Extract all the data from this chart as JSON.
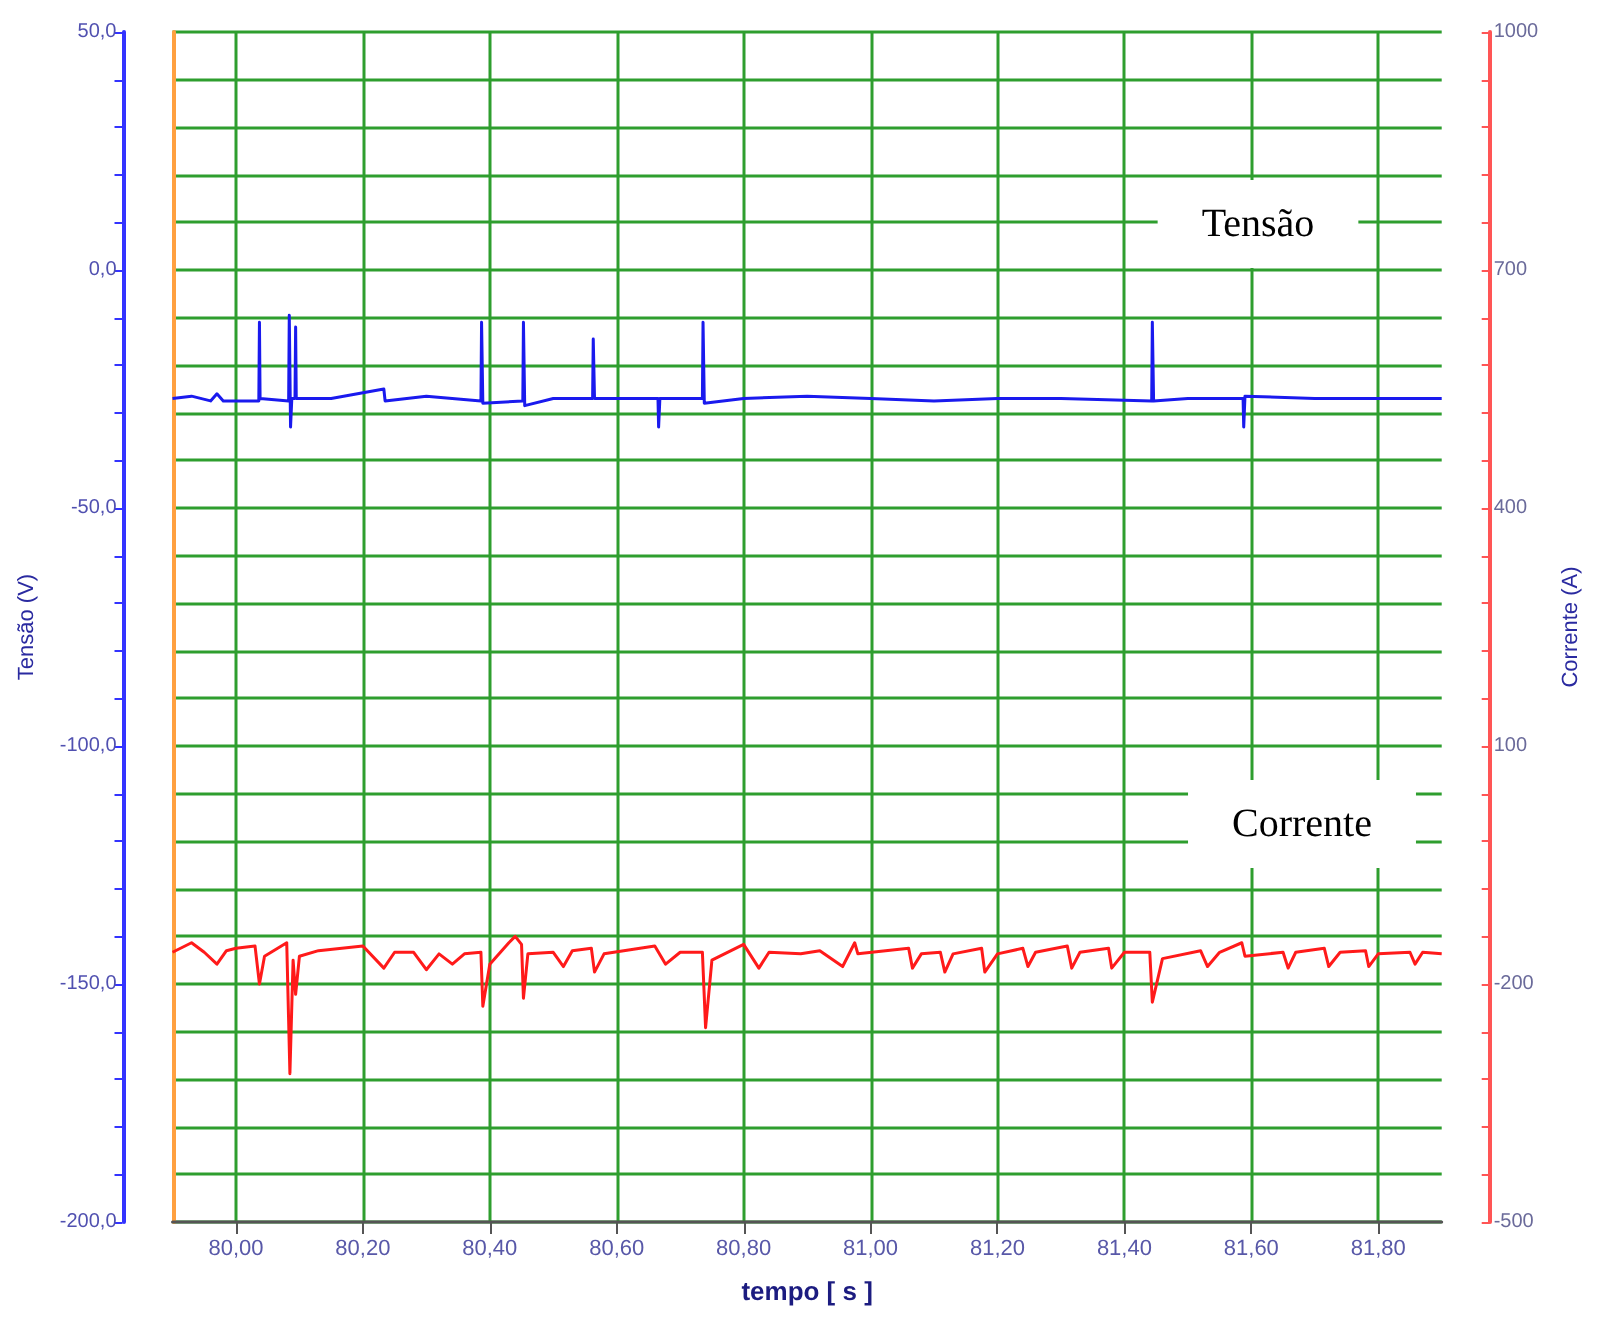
{
  "chart_data": {
    "type": "line",
    "xlabel": "tempo [ s ]",
    "ylabel": "Tensão (V)",
    "y2label": "Corrente (A)",
    "annotations": [
      "Tensão",
      "Corrente"
    ],
    "xlim": [
      79.9,
      81.9
    ],
    "xticks": [
      {
        "value": 80.0,
        "label": "80,00"
      },
      {
        "value": 80.2,
        "label": "80,20"
      },
      {
        "value": 80.4,
        "label": "80,40"
      },
      {
        "value": 80.6,
        "label": "80,60"
      },
      {
        "value": 80.8,
        "label": "80,80"
      },
      {
        "value": 81.0,
        "label": "81,00"
      },
      {
        "value": 81.2,
        "label": "81,20"
      },
      {
        "value": 81.4,
        "label": "81,40"
      },
      {
        "value": 81.6,
        "label": "81,60"
      },
      {
        "value": 81.8,
        "label": "81,80"
      }
    ],
    "ylim": [
      -200,
      50
    ],
    "yticks": [
      {
        "value": -200,
        "label": "-200,0"
      },
      {
        "value": -190,
        "label": null
      },
      {
        "value": -180,
        "label": null
      },
      {
        "value": -170,
        "label": null
      },
      {
        "value": -160,
        "label": null
      },
      {
        "value": -150,
        "label": "-150,0"
      },
      {
        "value": -140,
        "label": null
      },
      {
        "value": -130,
        "label": null
      },
      {
        "value": -120,
        "label": null
      },
      {
        "value": -110,
        "label": null
      },
      {
        "value": -100,
        "label": "-100,0"
      },
      {
        "value": -90,
        "label": null
      },
      {
        "value": -80,
        "label": null
      },
      {
        "value": -70,
        "label": null
      },
      {
        "value": -60,
        "label": null
      },
      {
        "value": -50,
        "label": "-50,0"
      },
      {
        "value": -40,
        "label": null
      },
      {
        "value": -30,
        "label": null
      },
      {
        "value": -20,
        "label": null
      },
      {
        "value": -10,
        "label": null
      },
      {
        "value": 0,
        "label": "0,0"
      },
      {
        "value": 10,
        "label": null
      },
      {
        "value": 20,
        "label": null
      },
      {
        "value": 30,
        "label": null
      },
      {
        "value": 40,
        "label": null
      },
      {
        "value": 50,
        "label": "50,0"
      }
    ],
    "y2lim": [
      -500,
      1000
    ],
    "y2ticks": [
      -500,
      {
        "value": -440,
        "label": null
      },
      {
        "value": -380,
        "label": null
      },
      {
        "value": -320,
        "label": null
      },
      {
        "value": -260,
        "label": null
      },
      -200,
      {
        "value": -140,
        "label": null
      },
      {
        "value": -80,
        "label": null
      },
      {
        "value": -20,
        "label": null
      },
      {
        "value": 40,
        "label": null
      },
      100,
      {
        "value": 160,
        "label": null
      },
      {
        "value": 220,
        "label": null
      },
      {
        "value": 280,
        "label": null
      },
      {
        "value": 340,
        "label": null
      },
      400,
      {
        "value": 460,
        "label": null
      },
      {
        "value": 520,
        "label": null
      },
      {
        "value": 580,
        "label": null
      },
      {
        "value": 640,
        "label": null
      },
      700,
      {
        "value": 760,
        "label": null
      },
      {
        "value": 820,
        "label": null
      },
      {
        "value": 880,
        "label": null
      },
      {
        "value": 940,
        "label": null
      },
      1000
    ],
    "grid": true,
    "marker": "none",
    "line_style": "solid",
    "series": [
      {
        "color": "#1a1aee",
        "x": [
          79.9,
          79.93,
          79.96,
          79.97,
          79.98,
          80.036,
          80.037,
          80.038,
          80.083,
          80.084,
          80.086,
          80.088,
          80.093,
          80.094,
          80.095,
          80.15,
          80.233,
          80.235,
          80.3,
          80.386,
          80.387,
          80.389,
          80.452,
          80.453,
          80.455,
          80.5,
          80.562,
          80.563,
          80.565,
          80.665,
          80.666,
          80.668,
          80.735,
          80.736,
          80.738,
          80.8,
          80.9,
          81.0,
          81.1,
          81.2,
          81.3,
          81.443,
          81.444,
          81.446,
          81.5,
          81.587,
          81.588,
          81.59,
          81.7,
          81.8,
          81.9
        ],
        "values": [
          -27,
          -26.5,
          -27.5,
          -26,
          -27.5,
          -27.5,
          -11,
          -27,
          -27.5,
          -9.5,
          -33,
          -27,
          -27,
          -12,
          -27,
          -27,
          -25,
          -27.5,
          -26.5,
          -27.5,
          -11,
          -28,
          -27.5,
          -11,
          -28.5,
          -27,
          -27,
          -14.5,
          -27,
          -27,
          -33,
          -27,
          -27,
          -11,
          -28,
          -27,
          -26.5,
          -27,
          -27.5,
          -27,
          -27,
          -27.5,
          -11,
          -27.5,
          -27,
          -27,
          -33,
          -26.5,
          -27,
          -27,
          -27
        ]
      },
      {
        "color": "#ff1a1a",
        "axis": "y2",
        "x": [
          79.9,
          79.93,
          79.95,
          79.97,
          79.985,
          80.0,
          80.03,
          80.037,
          80.045,
          80.08,
          80.085,
          80.09,
          80.094,
          80.1,
          80.13,
          80.2,
          80.233,
          80.25,
          80.28,
          80.3,
          80.32,
          80.341,
          80.36,
          80.386,
          80.389,
          80.4,
          80.43,
          80.44,
          80.45,
          80.453,
          80.46,
          80.5,
          80.516,
          80.53,
          80.56,
          80.565,
          80.58,
          80.66,
          80.677,
          80.7,
          80.735,
          80.74,
          80.75,
          80.8,
          80.824,
          80.84,
          80.89,
          80.92,
          80.956,
          80.975,
          80.98,
          81.06,
          81.066,
          81.08,
          81.11,
          81.117,
          81.13,
          81.175,
          81.18,
          81.2,
          81.24,
          81.248,
          81.26,
          81.31,
          81.317,
          81.33,
          81.375,
          81.38,
          81.4,
          81.44,
          81.444,
          81.46,
          81.52,
          81.531,
          81.55,
          81.585,
          81.59,
          81.65,
          81.658,
          81.67,
          81.715,
          81.722,
          81.74,
          81.78,
          81.785,
          81.8,
          81.85,
          81.858,
          81.87,
          81.9
        ],
        "values": [
          -160,
          -148,
          -160,
          -175,
          -158,
          -155,
          -152,
          -200,
          -165,
          -148,
          -313,
          -170,
          -213,
          -165,
          -158,
          -152,
          -180,
          -160,
          -160,
          -182,
          -162,
          -175,
          -162,
          -160,
          -228,
          -175,
          -148,
          -140,
          -150,
          -218,
          -162,
          -160,
          -178,
          -158,
          -155,
          -185,
          -162,
          -152,
          -175,
          -160,
          -160,
          -255,
          -170,
          -150,
          -180,
          -160,
          -162,
          -158,
          -178,
          -148,
          -162,
          -155,
          -180,
          -162,
          -160,
          -185,
          -162,
          -155,
          -185,
          -162,
          -155,
          -178,
          -160,
          -152,
          -180,
          -160,
          -155,
          -180,
          -160,
          -160,
          -223,
          -168,
          -158,
          -178,
          -160,
          -148,
          -165,
          -160,
          -180,
          -160,
          -155,
          -178,
          -160,
          -158,
          -178,
          -162,
          -160,
          -175,
          -160,
          -162
        ]
      }
    ]
  }
}
